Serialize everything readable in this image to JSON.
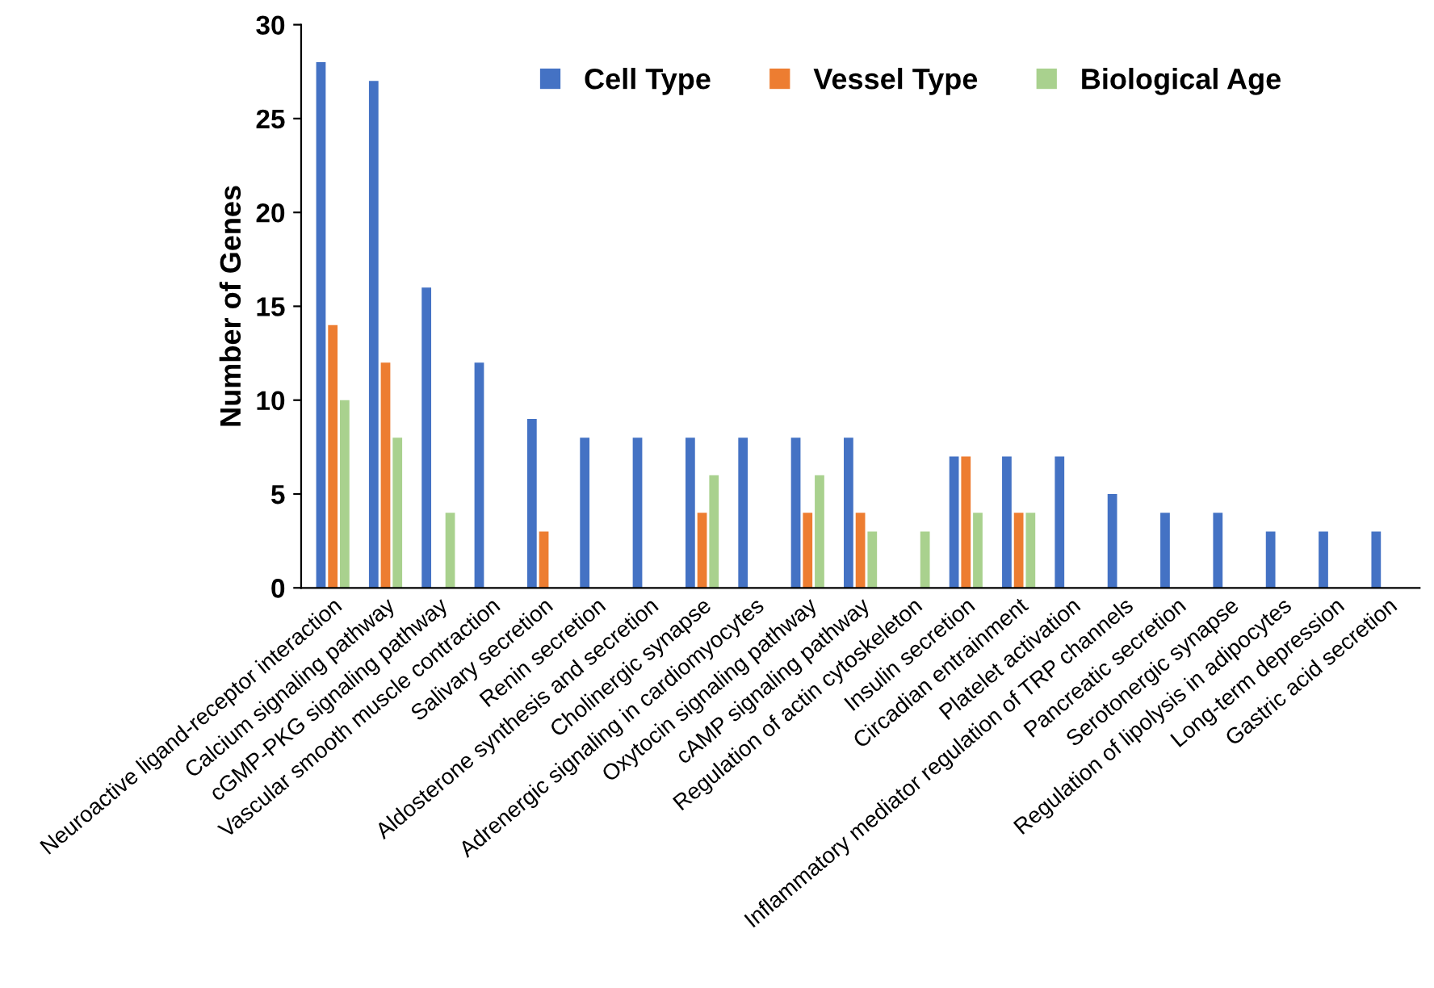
{
  "chart_data": {
    "type": "bar",
    "ylabel": "Number of Genes",
    "categories": [
      "Neuroactive ligand-receptor interaction",
      "Calcium signaling pathway",
      "cGMP-PKG signaling pathway",
      "Vascular smooth muscle contraction",
      "Salivary secretion",
      "Renin secretion",
      "Aldosterone synthesis and secretion",
      "Cholinergic synapse",
      "Adrenergic signaling in cardiomyocytes",
      "Oxytocin signaling pathway",
      "cAMP signaling pathway",
      "Regulation of actin cytoskeleton",
      "Insulin secretion",
      "Circadian entrainment",
      "Platelet activation",
      "Inflammatory mediator regulation of TRP channels",
      "Pancreatic secretion",
      "Serotonergic synapse",
      "Regulation of lipolysis in adipocytes",
      "Long-term depression",
      "Gastric acid secretion"
    ],
    "series": [
      {
        "name": "Cell Type",
        "color": "#4472c4",
        "values": [
          28,
          27,
          16,
          12,
          9,
          8,
          8,
          8,
          8,
          8,
          8,
          null,
          7,
          7,
          7,
          5,
          4,
          4,
          3,
          3,
          3
        ]
      },
      {
        "name": "Vessel Type",
        "color": "#ed7d31",
        "values": [
          14,
          12,
          null,
          null,
          3,
          null,
          null,
          4,
          null,
          4,
          4,
          null,
          7,
          4,
          null,
          null,
          null,
          null,
          null,
          null,
          null
        ]
      },
      {
        "name": "Biological Age",
        "color": "#a9d18e",
        "values": [
          10,
          8,
          4,
          null,
          null,
          null,
          null,
          6,
          null,
          6,
          3,
          3,
          4,
          4,
          null,
          null,
          null,
          null,
          null,
          null,
          null
        ]
      }
    ],
    "ylim": [
      0,
      30
    ],
    "yticks": [
      0,
      5,
      10,
      15,
      20,
      25,
      30
    ],
    "grid": false,
    "legend": "top right"
  }
}
